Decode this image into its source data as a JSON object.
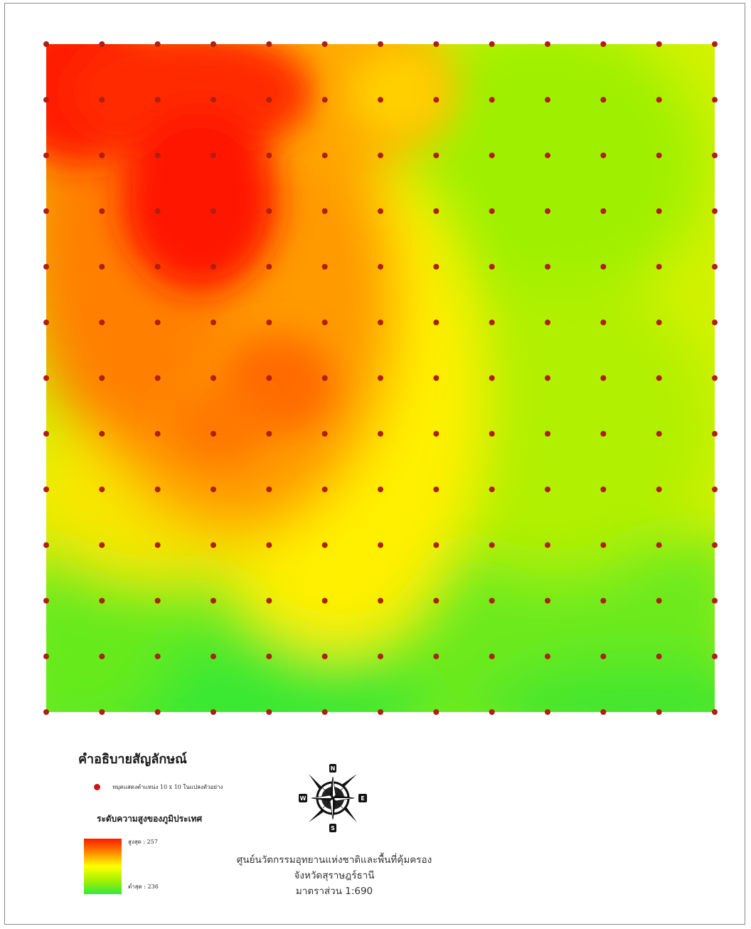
{
  "map": {
    "grid_columns": 13,
    "grid_rows": 13,
    "point_color": "#b01f12",
    "color_ramp": [
      "#ff1a00",
      "#ff8a00",
      "#ffff00",
      "#a6f000",
      "#32ea3a"
    ],
    "surface_base_color": "#d2f200"
  },
  "legend": {
    "title": "คำอธิบายสัญลักษณ์",
    "point_label": "หมุดแสดงตำแหน่ง 10 x 10 ในแปลงตัวอย่าง",
    "elevation_title": "ระดับความสูงของภูมิประเทศ",
    "high_label": "สูงสุด : 257",
    "low_label": "ต่ำสุด : 236",
    "high_value": 257,
    "low_value": 236
  },
  "compass": {
    "icon": "compass-rose-icon",
    "letters": {
      "n": "N",
      "s": "S",
      "e": "E",
      "w": "W"
    }
  },
  "info": {
    "org": "ศูนย์นวัตกรรมอุทยานแห่งชาติและพื้นที่คุ้มครอง",
    "province": "จังหวัดสุราษฎร์ธานี",
    "scale": "มาตราส่วน 1:690"
  }
}
